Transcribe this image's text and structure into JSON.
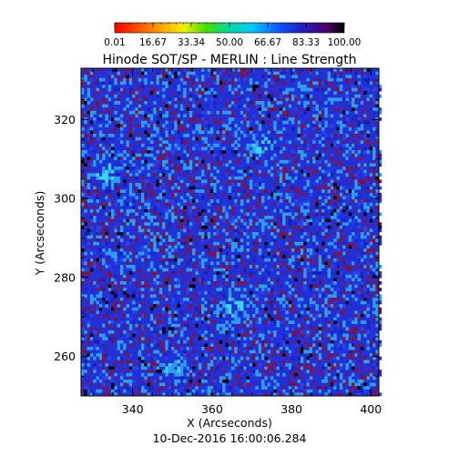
{
  "chart_data": {
    "type": "heatmap",
    "title": "Hinode SOT/SP - MERLIN : Line Strength",
    "xlabel": "X (Arcseconds)",
    "ylabel": "Y (Arcseconds)",
    "xlim": [
      327,
      402
    ],
    "ylim": [
      250,
      333
    ],
    "x_ticks": [
      340,
      360,
      380,
      400
    ],
    "y_ticks": [
      260,
      280,
      300,
      320
    ],
    "timestamp": "10-Dec-2016 16:00:06.284",
    "colorbar": {
      "min": 0.01,
      "max": 100.0,
      "tick_labels": [
        "0.01",
        "16.67",
        "33.34",
        "50.00",
        "66.67",
        "83.33",
        "100.00"
      ],
      "colormap": [
        "#000000",
        "#4a0078",
        "#2020d0",
        "#0090ff",
        "#00e0e0",
        "#00d000",
        "#e0e000",
        "#ff8000",
        "#ff0000"
      ]
    },
    "field": {
      "dominant_range": [
        66,
        84
      ],
      "description_colors": {
        "background": "#2330d8",
        "bright_patch": "#29b8f0",
        "dark_speck": "#7a1040",
        "black_speck": "#000000"
      },
      "bright_regions_data_units": [
        {
          "x": 365,
          "y": 273
        },
        {
          "x": 350,
          "y": 258
        },
        {
          "x": 372,
          "y": 314
        },
        {
          "x": 333,
          "y": 307
        }
      ]
    }
  }
}
